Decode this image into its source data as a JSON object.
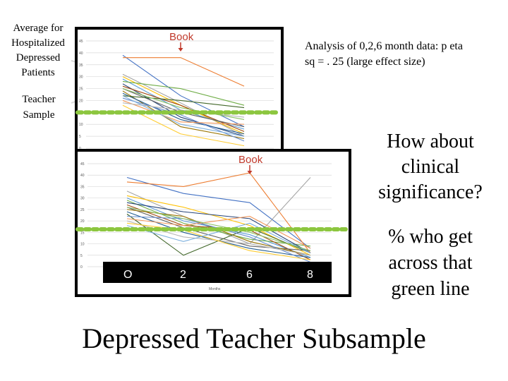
{
  "slide": {
    "left_label_hospitalized": "Average for Hospitalized Depressed Patients",
    "left_label_teacher": "Teacher Sample",
    "analysis_text": "Analysis of 0,2,6 month data: p eta sq = . 25 (large effect size)",
    "question_clinical": "How about clinical significance?",
    "question_percent": "% who get across that green line",
    "footer_title": "Depressed Teacher Subsample"
  },
  "colors": {
    "green_line": "#8cc63f",
    "book_arrow": "#c0392b",
    "grid": "#d9d9d9",
    "series_palette": [
      "#4472c4",
      "#ed7d31",
      "#a5a5a5",
      "#ffc000",
      "#5b9bd5",
      "#70ad47",
      "#264478",
      "#9e480e",
      "#636363",
      "#997300",
      "#255e91",
      "#43682b",
      "#698ed0",
      "#f1975a",
      "#b7b7b7",
      "#ffcd33",
      "#7cafdd",
      "#8cc168",
      "#e377c2",
      "#7f7f7f",
      "#bcbd22",
      "#17becf"
    ]
  },
  "chart_data": [
    {
      "type": "line",
      "name": "top-chart",
      "annotation": "Book",
      "annotation_at": 2,
      "x": [
        0,
        2,
        6
      ],
      "y_ticks": [
        "0",
        "5",
        "10",
        "15",
        "20",
        "25",
        "30",
        "35",
        "40",
        "45"
      ],
      "ylim": [
        0,
        45
      ],
      "threshold": 15,
      "series": [
        {
          "values": [
            39,
            22,
            9
          ]
        },
        {
          "values": [
            38,
            38,
            26
          ]
        },
        {
          "values": [
            31,
            19,
            5
          ]
        },
        {
          "values": [
            30,
            18,
            6
          ]
        },
        {
          "values": [
            29,
            16,
            8
          ]
        },
        {
          "values": [
            28,
            25,
            18
          ]
        },
        {
          "values": [
            27,
            13,
            5
          ]
        },
        {
          "values": [
            26,
            18,
            7
          ]
        },
        {
          "values": [
            25,
            15,
            9
          ]
        },
        {
          "values": [
            24,
            9,
            4
          ]
        },
        {
          "values": [
            23,
            12,
            6
          ]
        },
        {
          "values": [
            22,
            20,
            17
          ]
        },
        {
          "values": [
            21,
            14,
            3
          ]
        },
        {
          "values": [
            20,
            11,
            10
          ]
        },
        {
          "values": [
            19,
            16,
            13
          ]
        },
        {
          "values": [
            18,
            6,
            1
          ]
        },
        {
          "values": [
            22,
            10,
            5
          ]
        },
        {
          "values": [
            25,
            17,
            12
          ]
        }
      ]
    },
    {
      "type": "line",
      "name": "bottom-chart",
      "annotation": "Book",
      "annotation_at": 6,
      "x": [
        0,
        2,
        6,
        8
      ],
      "x_tick_labels": [
        "O",
        "2",
        "6",
        "8"
      ],
      "xlabel": "Months",
      "y_ticks": [
        "0",
        "5",
        "10",
        "15",
        "20",
        "25",
        "30",
        "35",
        "40",
        "45"
      ],
      "ylim": [
        0,
        45
      ],
      "threshold": 15,
      "series": [
        {
          "values": [
            39,
            32,
            28,
            8
          ]
        },
        {
          "values": [
            37,
            35,
            41,
            6
          ]
        },
        {
          "values": [
            33,
            22,
            10,
            39
          ]
        },
        {
          "values": [
            31,
            26,
            18,
            5
          ]
        },
        {
          "values": [
            30,
            20,
            14,
            4
          ]
        },
        {
          "values": [
            29,
            19,
            12,
            9
          ]
        },
        {
          "values": [
            28,
            24,
            21,
            6
          ]
        },
        {
          "values": [
            27,
            18,
            16,
            3
          ]
        },
        {
          "values": [
            26,
            17,
            9,
            7
          ]
        },
        {
          "values": [
            25,
            22,
            11,
            5
          ]
        },
        {
          "values": [
            24,
            15,
            8,
            4
          ]
        },
        {
          "values": [
            23,
            5,
            17,
            6
          ]
        },
        {
          "values": [
            22,
            21,
            13,
            2
          ]
        },
        {
          "values": [
            21,
            18,
            22,
            8
          ]
        },
        {
          "values": [
            20,
            13,
            10,
            5
          ]
        },
        {
          "values": [
            19,
            16,
            7,
            3
          ]
        },
        {
          "values": [
            18,
            11,
            19,
            6
          ]
        },
        {
          "values": [
            26,
            21,
            15,
            7
          ]
        }
      ]
    }
  ]
}
